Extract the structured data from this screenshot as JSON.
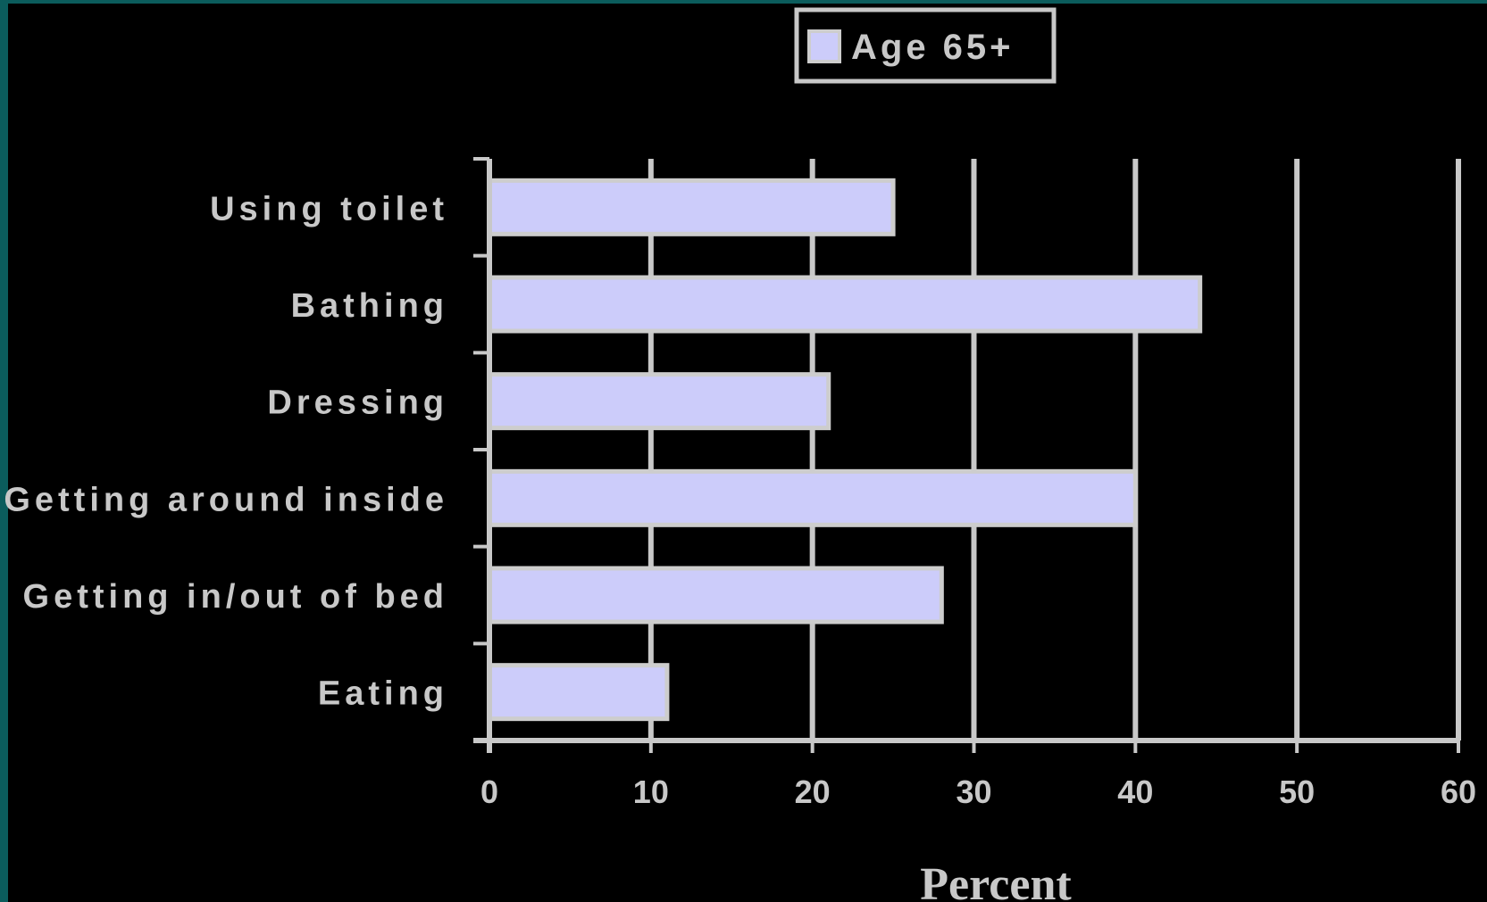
{
  "colors": {
    "background": "#000000",
    "frame": "#0b5c5c",
    "grid": "#c8c8c8",
    "bar_fill": "#ccccfa",
    "bar_border": "#cdcdcd",
    "text": "#c8c8c8"
  },
  "chart_data": {
    "type": "bar",
    "orientation": "horizontal",
    "categories": [
      "Using toilet",
      "Bathing",
      "Dressing",
      "Getting around inside",
      "Getting in/out of bed",
      "Eating"
    ],
    "series": [
      {
        "name": "Age 65+",
        "values": [
          25,
          44,
          21,
          40,
          28,
          11
        ]
      }
    ],
    "xlabel": "Percent",
    "xlim": [
      0,
      60
    ],
    "xticks": [
      0,
      10,
      20,
      30,
      40,
      50,
      60
    ],
    "grid": true,
    "legend_position": "top-center"
  }
}
